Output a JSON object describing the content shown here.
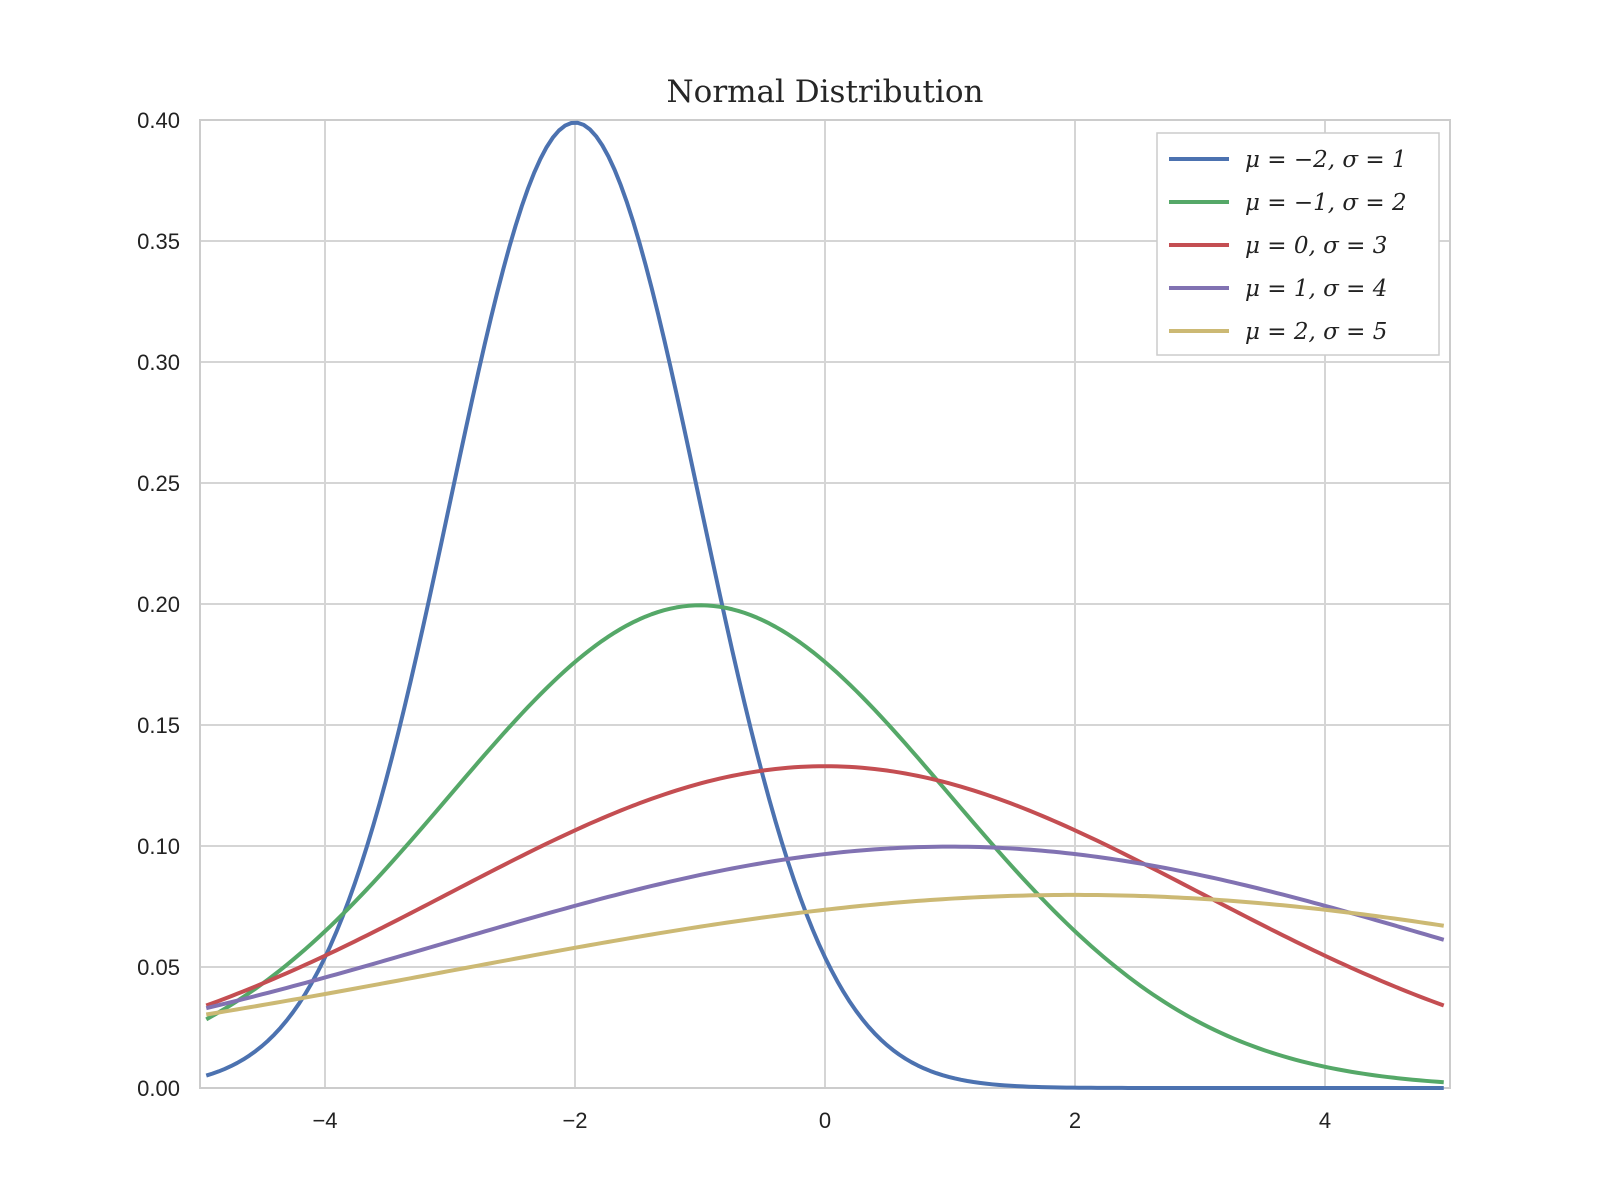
{
  "chart_data": {
    "type": "line",
    "title": "Normal Distribution",
    "xlabel": "",
    "ylabel": "",
    "xlim": [
      -5,
      5
    ],
    "ylim": [
      0,
      0.4
    ],
    "grid": true,
    "legend_position": "top-right",
    "x_ticks": [
      -4,
      -2,
      0,
      2,
      4
    ],
    "x_tick_labels": [
      "−4",
      "−2",
      "0",
      "2",
      "4"
    ],
    "y_ticks": [
      0,
      0.05,
      0.1,
      0.15,
      0.2,
      0.25,
      0.3,
      0.35,
      0.4
    ],
    "y_tick_labels": [
      "0.00",
      "0.05",
      "0.10",
      "0.15",
      "0.20",
      "0.25",
      "0.30",
      "0.35",
      "0.40"
    ],
    "x_range": [
      -4.95,
      4.95
    ],
    "series": [
      {
        "name": "μ = −2,  σ = 1",
        "mu": -2,
        "sigma": 1,
        "color": "#4c72b0"
      },
      {
        "name": "μ = −1,  σ = 2",
        "mu": -1,
        "sigma": 2,
        "color": "#55a868"
      },
      {
        "name": "μ = 0,  σ = 3",
        "mu": 0,
        "sigma": 3,
        "color": "#c44e52"
      },
      {
        "name": "μ = 1,  σ = 4",
        "mu": 1,
        "sigma": 4,
        "color": "#8172b2"
      },
      {
        "name": "μ = 2,  σ = 5",
        "mu": 2,
        "sigma": 5,
        "color": "#ccb974"
      }
    ]
  }
}
